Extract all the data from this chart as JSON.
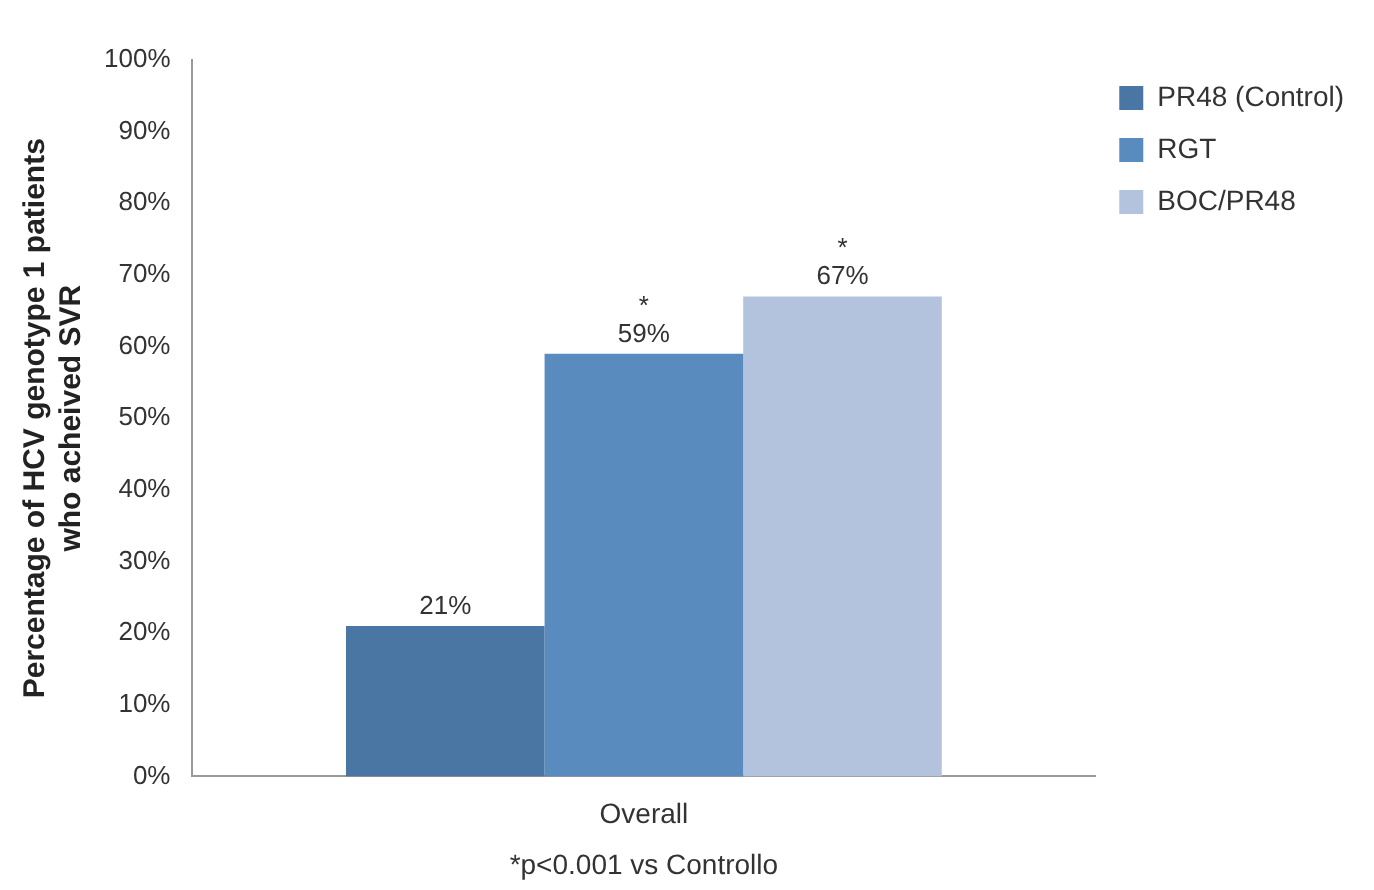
{
  "chart_data": {
    "type": "bar",
    "categories": [
      "Overall"
    ],
    "ylabel": "Percentage of HCV genotype 1 patients who acheived SVR",
    "series": [
      {
        "name": "PR48 (Control)",
        "color": "#4a76a3",
        "values": [
          21
        ],
        "value_labels": [
          "21%"
        ]
      },
      {
        "name": "RGT",
        "color": "#5a8bbf",
        "values": [
          59
        ],
        "value_labels": [
          "*\n59%"
        ]
      },
      {
        "name": "BOC/PR48",
        "color": "#b3c3dd",
        "values": [
          67
        ],
        "value_labels": [
          "*\n67%"
        ]
      }
    ],
    "ylim": [
      0,
      100
    ],
    "yticks": [
      {
        "value": 0,
        "label": "0%"
      },
      {
        "value": 10,
        "label": "10%"
      },
      {
        "value": 20,
        "label": "20%"
      },
      {
        "value": 30,
        "label": "30%"
      },
      {
        "value": 40,
        "label": "40%"
      },
      {
        "value": 50,
        "label": "50%"
      },
      {
        "value": 60,
        "label": "60%"
      },
      {
        "value": 70,
        "label": "70%"
      },
      {
        "value": 80,
        "label": "80%"
      },
      {
        "value": 90,
        "label": "90%"
      },
      {
        "value": 100,
        "label": "100%"
      }
    ],
    "grid": false,
    "legend": "right",
    "annotations": [
      "*p<0.001 vs Controllo"
    ]
  }
}
